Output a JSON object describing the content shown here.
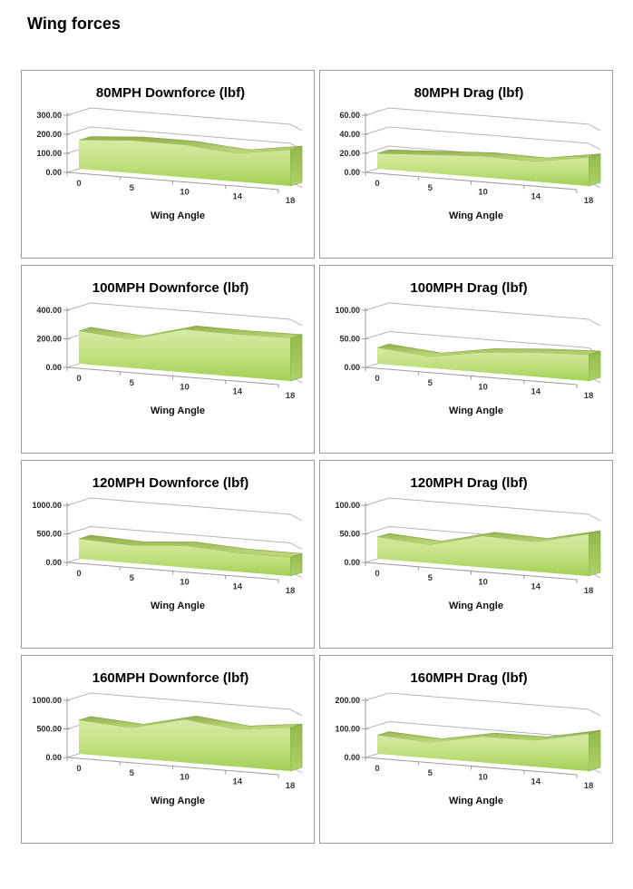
{
  "page": {
    "title": "Wing forces"
  },
  "palette": {
    "area_light": "#d6eaa4",
    "area_mid": "#c0e07e",
    "area_dark": "#a2cf55",
    "ribbon_dark": "#8fae4b",
    "ribbon_light": "#c3dd80",
    "area_edge": "#82a043",
    "side_dark": "#93b84c",
    "side_light": "#aed266",
    "grid": "#b5b5b5",
    "axis": "#9b9b9b",
    "box_border": "#9a9a9a"
  },
  "chart_data": [
    {
      "type": "area",
      "title": "80MPH Downforce (lbf)",
      "xlabel": "Wing Angle",
      "categories": [
        "0",
        "5",
        "10",
        "14",
        "18"
      ],
      "values": [
        150,
        170,
        170,
        148,
        190
      ],
      "ylim": [
        0,
        300
      ],
      "yticks": [
        "0.00",
        "100.00",
        "200.00",
        "300.00"
      ],
      "grid": true,
      "legend": false
    },
    {
      "type": "area",
      "title": "80MPH Drag (lbf)",
      "xlabel": "Wing Angle",
      "categories": [
        "0",
        "5",
        "10",
        "14",
        "18"
      ],
      "values": [
        16,
        19,
        22,
        21,
        30
      ],
      "ylim": [
        0,
        60
      ],
      "yticks": [
        "0.00",
        "20.00",
        "40.00",
        "60.00"
      ],
      "grid": true,
      "legend": false
    },
    {
      "type": "area",
      "title": "100MPH Downforce (lbf)",
      "xlabel": "Wing Angle",
      "categories": [
        "0",
        "5",
        "10",
        "14",
        "18"
      ],
      "values": [
        230,
        200,
        300,
        295,
        300
      ],
      "ylim": [
        0,
        400
      ],
      "yticks": [
        "0.00",
        "200.00",
        "400.00"
      ],
      "grid": true,
      "legend": false
    },
    {
      "type": "area",
      "title": "100MPH Drag (lbf)",
      "xlabel": "Wing Angle",
      "categories": [
        "0",
        "5",
        "10",
        "14",
        "18"
      ],
      "values": [
        28,
        20,
        35,
        42,
        46
      ],
      "ylim": [
        0,
        100
      ],
      "yticks": [
        "0.00",
        "50.00",
        "100.00"
      ],
      "grid": true,
      "legend": false
    },
    {
      "type": "area",
      "title": "120MPH Downforce (lbf)",
      "xlabel": "Wing Angle",
      "categories": [
        "0",
        "5",
        "10",
        "14",
        "18"
      ],
      "values": [
        350,
        310,
        380,
        330,
        330
      ],
      "ylim": [
        0,
        1000
      ],
      "yticks": [
        "0.00",
        "500.00",
        "1000.00"
      ],
      "grid": true,
      "legend": false
    },
    {
      "type": "area",
      "title": "120MPH Drag (lbf)",
      "xlabel": "Wing Angle",
      "categories": [
        "0",
        "5",
        "10",
        "14",
        "18"
      ],
      "values": [
        38,
        32,
        55,
        52,
        73
      ],
      "ylim": [
        0,
        100
      ],
      "yticks": [
        "0.00",
        "50.00",
        "100.00"
      ],
      "grid": true,
      "legend": false
    },
    {
      "type": "area",
      "title": "160MPH Downforce (lbf)",
      "xlabel": "Wing Angle",
      "categories": [
        "0",
        "5",
        "10",
        "14",
        "18"
      ],
      "values": [
        590,
        530,
        750,
        650,
        760
      ],
      "ylim": [
        0,
        1000
      ],
      "yticks": [
        "0.00",
        "500.00",
        "1000.00"
      ],
      "grid": true,
      "legend": false
    },
    {
      "type": "area",
      "title": "160MPH Drag (lbf)",
      "xlabel": "Wing Angle",
      "categories": [
        "0",
        "5",
        "10",
        "14",
        "18"
      ],
      "values": [
        65,
        55,
        90,
        92,
        130
      ],
      "ylim": [
        0,
        200
      ],
      "yticks": [
        "0.00",
        "100.00",
        "200.00"
      ],
      "grid": true,
      "legend": false
    }
  ]
}
